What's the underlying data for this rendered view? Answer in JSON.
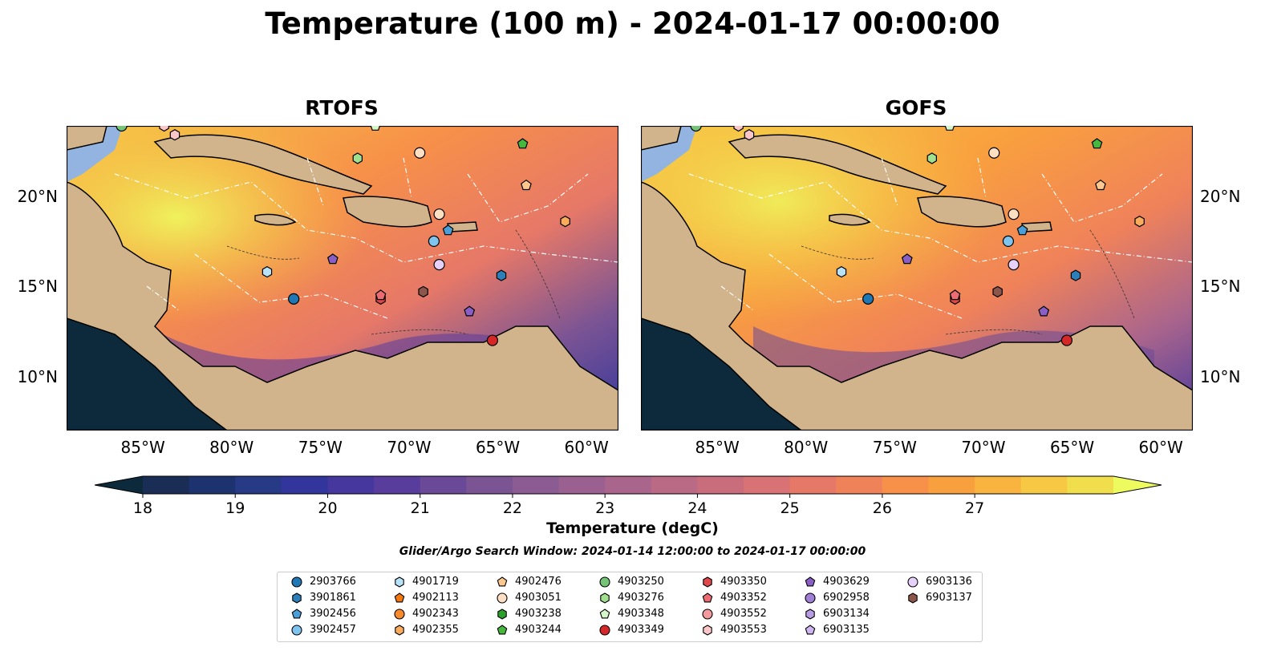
{
  "title": "Temperature (100 m) - 2024-01-17 00:00:00",
  "panels": [
    {
      "title": "RTOFS"
    },
    {
      "title": "GOFS"
    }
  ],
  "axes": {
    "lon_ticks": [
      "85°W",
      "80°W",
      "75°W",
      "70°W",
      "65°W",
      "60°W"
    ],
    "lat_ticks": [
      "20°N",
      "15°N",
      "10°N"
    ]
  },
  "colorbar": {
    "label": "Temperature (degC)",
    "ticks": [
      "18",
      "19",
      "20",
      "21",
      "22",
      "23",
      "24",
      "25",
      "26",
      "27"
    ],
    "min": 17.5,
    "max": 27.0,
    "step": 0.5,
    "extend": "both",
    "colors": [
      "#0c2a3c",
      "#1a2d54",
      "#1d336f",
      "#263a86",
      "#31359c",
      "#45379d",
      "#593d9c",
      "#6a4a98",
      "#7b5494",
      "#8a5c92",
      "#9a6090",
      "#aa658c",
      "#ba6a84",
      "#c96d7d",
      "#d87274",
      "#e67868",
      "#f0825a",
      "#f79049",
      "#f9a03e",
      "#f8b43f",
      "#f6c844",
      "#f0de4c",
      "#eefb5f"
    ]
  },
  "search_window": "Glider/Argo Search Window: 2024-01-14 12:00:00 to 2024-01-17 00:00:00",
  "legend": [
    {
      "label": "2903766",
      "marker": "circle",
      "color": "#1f77b4"
    },
    {
      "label": "3901861",
      "marker": "hexagon",
      "color": "#2c7fb8"
    },
    {
      "label": "3902456",
      "marker": "pentagon",
      "color": "#4a9fd8"
    },
    {
      "label": "3902457",
      "marker": "circle",
      "color": "#7fc4ee"
    },
    {
      "label": "4901719",
      "marker": "hexagon",
      "color": "#b7e2f7"
    },
    {
      "label": "4902113",
      "marker": "pentagon",
      "color": "#f4780f"
    },
    {
      "label": "4902343",
      "marker": "circle",
      "color": "#f78a2a"
    },
    {
      "label": "4902355",
      "marker": "hexagon",
      "color": "#f9ac5c"
    },
    {
      "label": "4902476",
      "marker": "pentagon",
      "color": "#fcc88f"
    },
    {
      "label": "4903051",
      "marker": "circle",
      "color": "#fde0c4"
    },
    {
      "label": "4903238",
      "marker": "hexagon",
      "color": "#2ca02c"
    },
    {
      "label": "4903244",
      "marker": "pentagon",
      "color": "#45b83d"
    },
    {
      "label": "4903250",
      "marker": "circle",
      "color": "#74c476"
    },
    {
      "label": "4903276",
      "marker": "hexagon",
      "color": "#a1e08f"
    },
    {
      "label": "4903348",
      "marker": "pentagon",
      "color": "#d4f7c8"
    },
    {
      "label": "4903349",
      "marker": "circle",
      "color": "#d62728"
    },
    {
      "label": "4903350",
      "marker": "hexagon",
      "color": "#e0474a"
    },
    {
      "label": "4903352",
      "marker": "pentagon",
      "color": "#ec6c72"
    },
    {
      "label": "4903552",
      "marker": "circle",
      "color": "#f4999c"
    },
    {
      "label": "4903553",
      "marker": "hexagon",
      "color": "#fbc6c7"
    },
    {
      "label": "4903629",
      "marker": "pentagon",
      "color": "#8a5fc5"
    },
    {
      "label": "6902958",
      "marker": "circle",
      "color": "#a07fd6"
    },
    {
      "label": "6903134",
      "marker": "hexagon",
      "color": "#b99ce4"
    },
    {
      "label": "6903135",
      "marker": "pentagon",
      "color": "#cfb6f0"
    },
    {
      "label": "6903136",
      "marker": "circle",
      "color": "#e6d1fb"
    },
    {
      "label": "6903137",
      "marker": "hexagon",
      "color": "#8c564b"
    }
  ],
  "floats": [
    {
      "id": "2903766",
      "lon": -76.5,
      "lat": 14.3
    },
    {
      "id": "3901861",
      "lon": -64.8,
      "lat": 15.6
    },
    {
      "id": "3902456",
      "lon": -67.8,
      "lat": 18.1
    },
    {
      "id": "3902457",
      "lon": -68.6,
      "lat": 17.5
    },
    {
      "id": "4901719",
      "lon": -78.0,
      "lat": 15.8
    },
    {
      "id": "4902355",
      "lon": -61.2,
      "lat": 18.6
    },
    {
      "id": "4902476",
      "lon": -63.4,
      "lat": 20.6
    },
    {
      "id": "4903051",
      "lon": -68.3,
      "lat": 19.0
    },
    {
      "id": "4903051",
      "lon": -69.4,
      "lat": 22.4
    },
    {
      "id": "4903244",
      "lon": -63.6,
      "lat": 22.9
    },
    {
      "id": "4903250",
      "lon": -86.2,
      "lat": 23.9
    },
    {
      "id": "4903276",
      "lon": -72.9,
      "lat": 22.1
    },
    {
      "id": "4903348",
      "lon": -71.9,
      "lat": 23.9
    },
    {
      "id": "4903349",
      "lon": -65.3,
      "lat": 12.0
    },
    {
      "id": "4903350",
      "lon": -71.6,
      "lat": 14.3
    },
    {
      "id": "4903352",
      "lon": -71.6,
      "lat": 14.5
    },
    {
      "id": "4903553",
      "lon": -83.2,
      "lat": 23.4
    },
    {
      "id": "4903553",
      "lon": -83.8,
      "lat": 23.9
    },
    {
      "id": "4903629",
      "lon": -66.6,
      "lat": 13.6
    },
    {
      "id": "4903629",
      "lon": -74.3,
      "lat": 16.5
    },
    {
      "id": "6903136",
      "lon": -68.3,
      "lat": 16.2
    },
    {
      "id": "6903137",
      "lon": -69.2,
      "lat": 14.7
    }
  ]
}
